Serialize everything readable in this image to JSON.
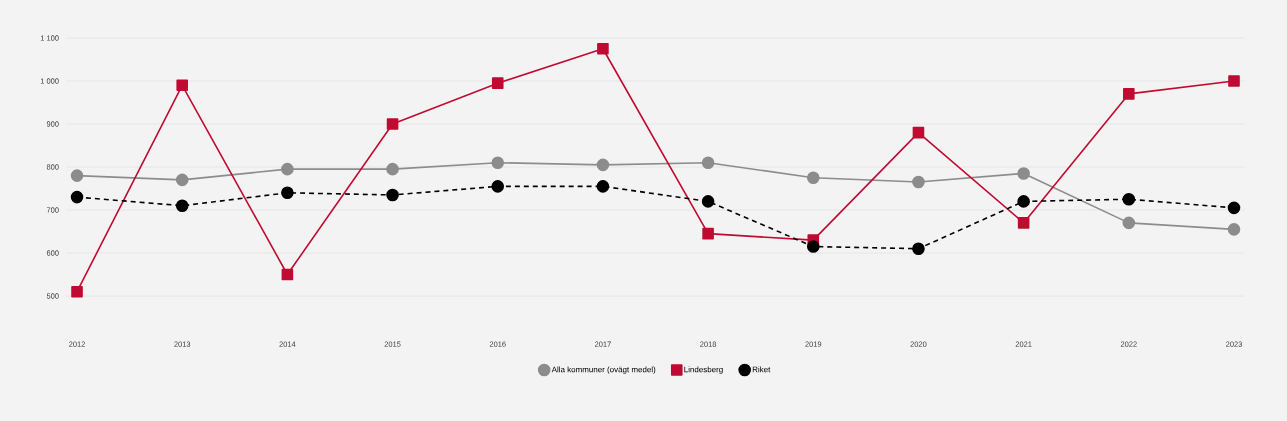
{
  "chart_data": {
    "type": "line",
    "categories": [
      "2012",
      "2013",
      "2014",
      "2015",
      "2016",
      "2017",
      "2018",
      "2019",
      "2020",
      "2021",
      "2022",
      "2023"
    ],
    "series": [
      {
        "name": "Alla kommuner (ovägt medel)",
        "color": "#8c8c8c",
        "marker": "circle",
        "line_style": "solid",
        "values": [
          780,
          770,
          795,
          795,
          810,
          805,
          810,
          775,
          765,
          785,
          670,
          655
        ]
      },
      {
        "name": "Lindesberg",
        "color": "#c00a31",
        "marker": "square",
        "line_style": "solid",
        "values": [
          510,
          990,
          550,
          900,
          995,
          1075,
          645,
          630,
          880,
          670,
          970,
          1000
        ]
      },
      {
        "name": "Riket",
        "color": "#000000",
        "marker": "circle",
        "line_style": "dashed",
        "values": [
          730,
          710,
          740,
          735,
          755,
          755,
          720,
          615,
          610,
          720,
          725,
          705
        ]
      }
    ],
    "ylim": [
      500,
      1100
    ],
    "yticks": [
      500,
      600,
      700,
      800,
      900,
      {
        "value": 1000,
        "label": "1 000"
      },
      {
        "value": 1100,
        "label": "1 100"
      }
    ],
    "grid": "y",
    "legend": "bottom"
  }
}
